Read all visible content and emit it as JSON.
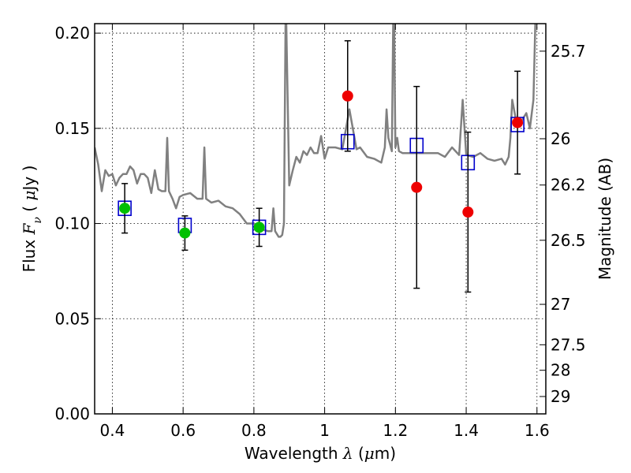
{
  "chart_data": {
    "type": "scatter",
    "title": "",
    "xlabel": {
      "prefix": "Wavelength ",
      "symbol": "λ",
      "unit_open": " (",
      "unit_mu": "μ",
      "unit_rest": "m)"
    },
    "ylabel": {
      "prefix": "Flux ",
      "symbol_main": "F",
      "symbol_sub": "ν",
      "unit_open": " ( ",
      "unit_mu": "μ",
      "unit_rest": "Jy )"
    },
    "y2label": "Magnitude (AB)",
    "xlim": [
      0.35,
      1.625
    ],
    "ylim": [
      0.0,
      0.205
    ],
    "grid": true,
    "x_ticks": [
      {
        "value": 0.4,
        "label": "0.4"
      },
      {
        "value": 0.6,
        "label": "0.6"
      },
      {
        "value": 0.8,
        "label": "0.8"
      },
      {
        "value": 1.0,
        "label": "1"
      },
      {
        "value": 1.2,
        "label": "1.2"
      },
      {
        "value": 1.4,
        "label": "1.4"
      },
      {
        "value": 1.6,
        "label": "1.6"
      }
    ],
    "y_ticks": [
      {
        "value": 0.0,
        "label": "0.00"
      },
      {
        "value": 0.05,
        "label": "0.05"
      },
      {
        "value": 0.1,
        "label": "0.10"
      },
      {
        "value": 0.15,
        "label": "0.15"
      },
      {
        "value": 0.2,
        "label": "0.20"
      }
    ],
    "y2_ticks": [
      {
        "value": 25.7,
        "label": "25.7"
      },
      {
        "value": 26.0,
        "label": "26"
      },
      {
        "value": 26.2,
        "label": "26.2"
      },
      {
        "value": 26.5,
        "label": "26.5"
      },
      {
        "value": 27.0,
        "label": "27"
      },
      {
        "value": 27.5,
        "label": "27.5"
      },
      {
        "value": 28.0,
        "label": "28"
      },
      {
        "value": 29.0,
        "label": "29"
      }
    ],
    "series": [
      {
        "kind": "model_spectrum",
        "color": "#808080",
        "x": [
          0.35,
          0.36,
          0.37,
          0.38,
          0.39,
          0.4,
          0.41,
          0.42,
          0.43,
          0.44,
          0.45,
          0.46,
          0.47,
          0.48,
          0.49,
          0.5,
          0.51,
          0.52,
          0.53,
          0.54,
          0.55,
          0.555,
          0.56,
          0.57,
          0.58,
          0.59,
          0.6,
          0.62,
          0.64,
          0.655,
          0.66,
          0.665,
          0.68,
          0.7,
          0.72,
          0.74,
          0.76,
          0.78,
          0.8,
          0.82,
          0.84,
          0.85,
          0.855,
          0.86,
          0.87,
          0.875,
          0.88,
          0.885,
          0.89,
          0.9,
          0.91,
          0.92,
          0.93,
          0.94,
          0.95,
          0.96,
          0.97,
          0.98,
          0.99,
          1.0,
          1.01,
          1.02,
          1.03,
          1.05,
          1.07,
          1.09,
          1.1,
          1.12,
          1.14,
          1.16,
          1.17,
          1.175,
          1.18,
          1.19,
          1.195,
          1.2,
          1.205,
          1.21,
          1.22,
          1.24,
          1.26,
          1.28,
          1.3,
          1.32,
          1.34,
          1.36,
          1.38,
          1.39,
          1.4,
          1.42,
          1.44,
          1.46,
          1.48,
          1.5,
          1.51,
          1.52,
          1.525,
          1.53,
          1.54,
          1.55,
          1.56,
          1.57,
          1.58,
          1.59,
          1.6,
          1.61,
          1.62,
          1.625
        ],
        "y": [
          0.14,
          0.131,
          0.117,
          0.128,
          0.125,
          0.126,
          0.12,
          0.124,
          0.126,
          0.126,
          0.13,
          0.128,
          0.121,
          0.126,
          0.126,
          0.124,
          0.116,
          0.128,
          0.118,
          0.117,
          0.117,
          0.145,
          0.117,
          0.113,
          0.108,
          0.114,
          0.115,
          0.116,
          0.113,
          0.113,
          0.14,
          0.113,
          0.111,
          0.112,
          0.109,
          0.108,
          0.105,
          0.1,
          0.1,
          0.097,
          0.096,
          0.096,
          0.108,
          0.096,
          0.093,
          0.093,
          0.094,
          0.1,
          0.22,
          0.12,
          0.128,
          0.135,
          0.132,
          0.138,
          0.136,
          0.14,
          0.137,
          0.137,
          0.146,
          0.134,
          0.14,
          0.14,
          0.14,
          0.139,
          0.16,
          0.139,
          0.14,
          0.135,
          0.134,
          0.132,
          0.14,
          0.16,
          0.145,
          0.138,
          0.23,
          0.14,
          0.145,
          0.138,
          0.137,
          0.137,
          0.137,
          0.137,
          0.137,
          0.137,
          0.135,
          0.14,
          0.136,
          0.165,
          0.136,
          0.135,
          0.137,
          0.134,
          0.133,
          0.134,
          0.131,
          0.135,
          0.145,
          0.165,
          0.155,
          0.152,
          0.155,
          0.158,
          0.15,
          0.165,
          0.24,
          0.24,
          0.24,
          0.24
        ]
      },
      {
        "kind": "model_photometry",
        "marker": "open-square",
        "color": "#0000cc",
        "x": [
          0.435,
          0.605,
          0.815,
          1.065,
          1.26,
          1.405,
          1.545
        ],
        "y": [
          0.108,
          0.099,
          0.098,
          0.143,
          0.141,
          0.132,
          0.152
        ]
      },
      {
        "kind": "observed_detection",
        "marker": "filled-circle",
        "color": "#00c000",
        "x": [
          0.435,
          0.605,
          0.815
        ],
        "y": [
          0.108,
          0.095,
          0.098
        ],
        "err": [
          0.013,
          0.009,
          0.01
        ]
      },
      {
        "kind": "observed_measurement",
        "marker": "filled-circle",
        "color": "#ee0000",
        "x": [
          1.065,
          1.26,
          1.405,
          1.545
        ],
        "y": [
          0.167,
          0.119,
          0.106,
          0.153
        ],
        "err": [
          0.029,
          0.053,
          0.042,
          0.027
        ]
      }
    ]
  }
}
